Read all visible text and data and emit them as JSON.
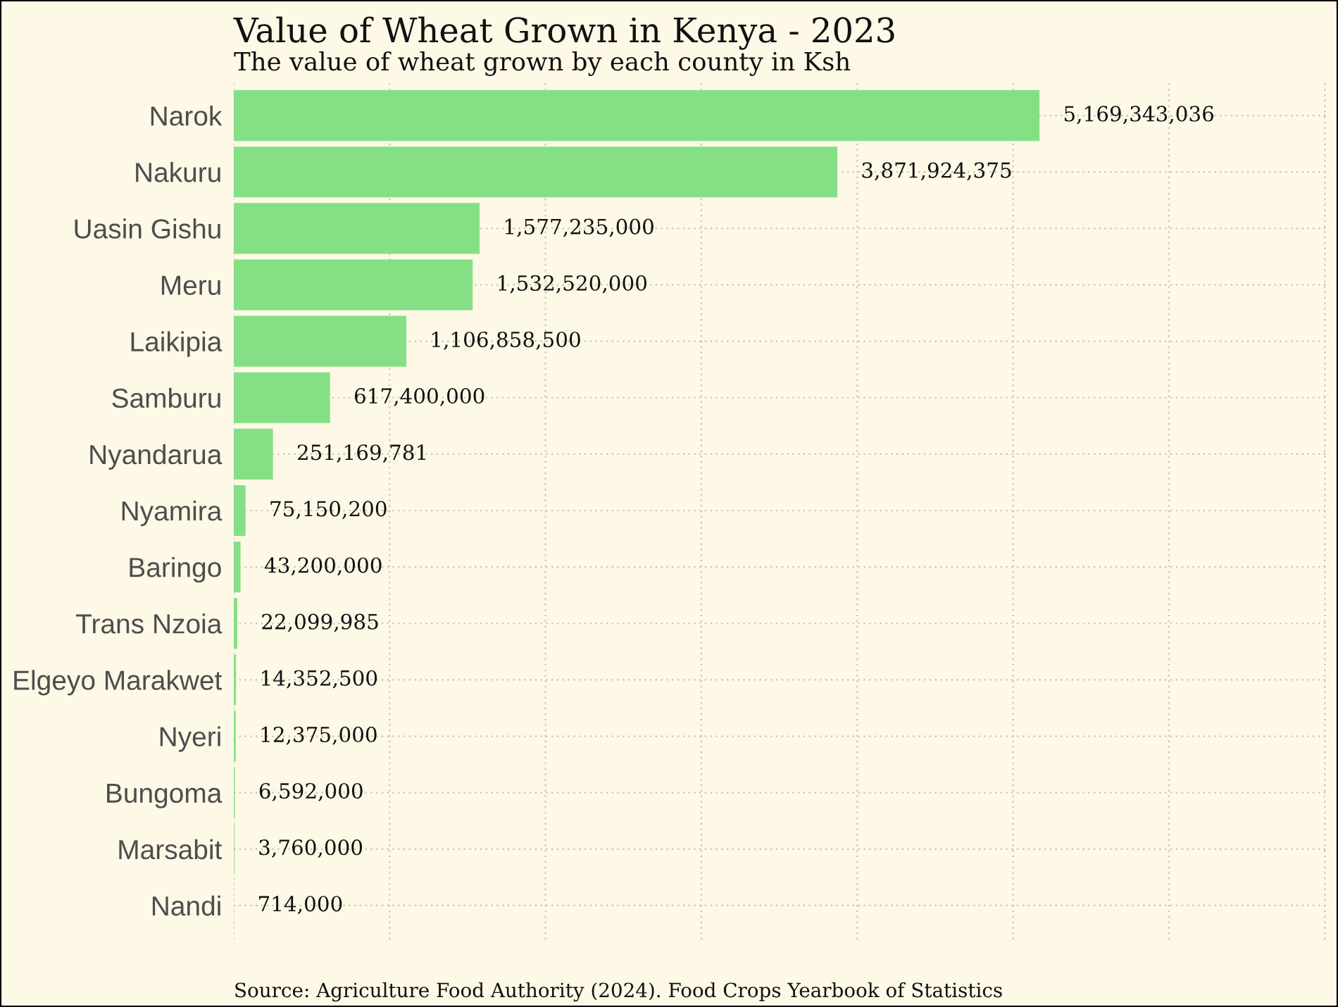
{
  "chart_data": {
    "type": "bar",
    "orientation": "horizontal",
    "title": "Value of Wheat Grown in Kenya - 2023",
    "subtitle": "The value of wheat grown by each county in Ksh",
    "annotations": [
      "Source: Agriculture Food Authority (2024). Food Crops Yearbook of Statistics"
    ],
    "categories": [
      "Narok",
      "Nakuru",
      "Uasin Gishu",
      "Meru",
      "Laikipia",
      "Samburu",
      "Nyandarua",
      "Nyamira",
      "Baringo",
      "Trans Nzoia",
      "Elgeyo Marakwet",
      "Nyeri",
      "Bungoma",
      "Marsabit",
      "Nandi"
    ],
    "values": [
      5169343036,
      3871924375,
      1577235000,
      1532520000,
      1106858500,
      617400000,
      251169781,
      75150200,
      43200000,
      22099985,
      14352500,
      12375000,
      6592000,
      3760000,
      714000
    ],
    "value_labels": [
      "5,169,343,036",
      "3,871,924,375",
      "1,577,235,000",
      "1,532,520,000",
      "1,106,858,500",
      "617,400,000",
      "251,169,781",
      "75,150,200",
      "43,200,000",
      "22,099,985",
      "14,352,500",
      "12,375,000",
      "6,592,000",
      "3,760,000",
      "714,000"
    ],
    "color": "#85e085",
    "tick_labels": "y",
    "grid": true
  }
}
